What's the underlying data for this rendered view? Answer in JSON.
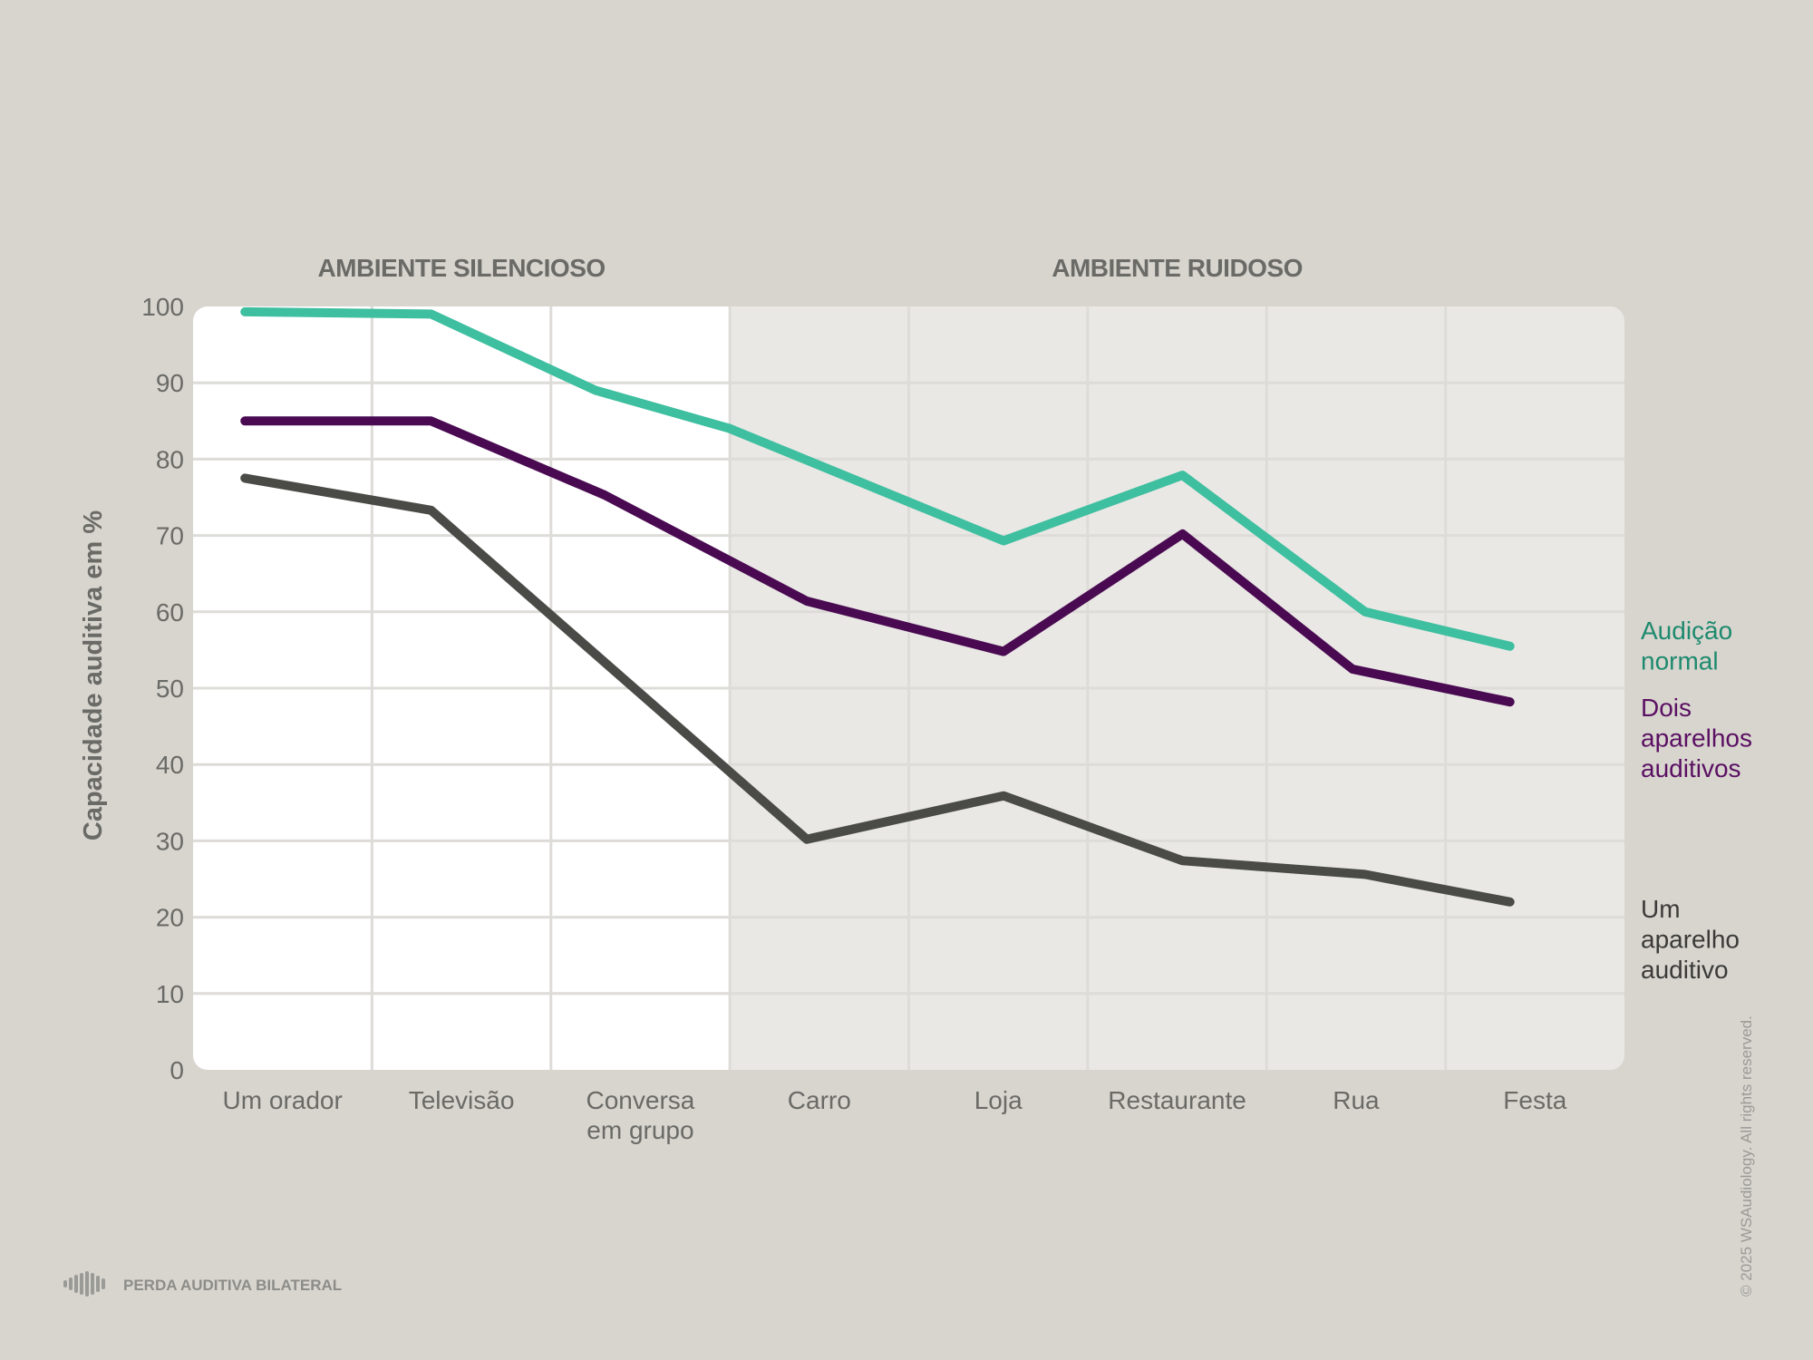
{
  "chart_data": {
    "type": "line",
    "ylabel": "Capacidade auditiva em %",
    "ylim": [
      0,
      100
    ],
    "yticks": [
      0,
      10,
      20,
      30,
      40,
      50,
      60,
      70,
      80,
      90,
      100
    ],
    "regions": [
      {
        "label": "AMBIENTE SILENCIOSO",
        "from": 0,
        "to": 3
      },
      {
        "label": "AMBIENTE RUIDOSO",
        "from": 3,
        "to": 8
      }
    ],
    "categories": [
      [
        "Um orador"
      ],
      [
        "Televisão"
      ],
      [
        "Conversa",
        "em grupo"
      ],
      [
        "Carro"
      ],
      [
        "Loja"
      ],
      [
        "Restaurante"
      ],
      [
        "Rua"
      ],
      [
        "Festa"
      ]
    ],
    "series": [
      {
        "name": [
          "Audição",
          "normal"
        ],
        "color": "#3ebfa0",
        "label_color": "#1e8a6e",
        "points": [
          [
            0.29,
            99.3
          ],
          [
            1.33,
            99.0
          ],
          [
            2.25,
            89.0
          ],
          [
            3.0,
            84.0
          ],
          [
            4.53,
            69.3
          ],
          [
            5.53,
            77.9
          ],
          [
            6.55,
            60.0
          ],
          [
            7.36,
            55.5
          ]
        ]
      },
      {
        "name": [
          "Dois",
          "aparelhos",
          "auditivos"
        ],
        "color": "#4a0a52",
        "label_color": "#5a1062",
        "points": [
          [
            0.29,
            85.0
          ],
          [
            1.33,
            85.0
          ],
          [
            2.3,
            75.3
          ],
          [
            3.43,
            61.4
          ],
          [
            4.53,
            54.8
          ],
          [
            5.53,
            70.2
          ],
          [
            6.48,
            52.5
          ],
          [
            7.36,
            48.2
          ]
        ]
      },
      {
        "name": [
          "Um",
          "aparelho",
          "auditivo"
        ],
        "color": "#4a4a46",
        "label_color": "#3a3a38",
        "points": [
          [
            0.29,
            77.5
          ],
          [
            1.33,
            73.3
          ],
          [
            3.43,
            30.2
          ],
          [
            4.53,
            35.9
          ],
          [
            5.53,
            27.4
          ],
          [
            6.55,
            25.6
          ],
          [
            7.36,
            22.0
          ]
        ]
      }
    ]
  },
  "footer": {
    "icon": "sound-wave-icon",
    "label": "PERDA AUDITIVA BILATERAL",
    "copyright": "© 2025 WSAudiology. All rights reserved."
  }
}
